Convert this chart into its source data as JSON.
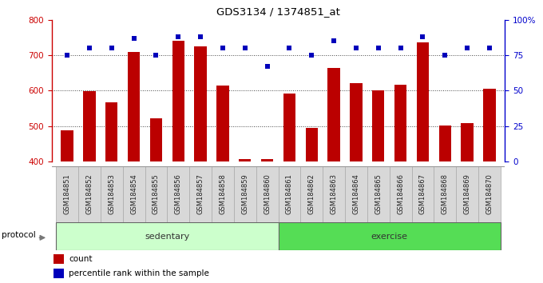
{
  "title": "GDS3134 / 1374851_at",
  "samples": [
    "GSM184851",
    "GSM184852",
    "GSM184853",
    "GSM184854",
    "GSM184855",
    "GSM184856",
    "GSM184857",
    "GSM184858",
    "GSM184859",
    "GSM184860",
    "GSM184861",
    "GSM184862",
    "GSM184863",
    "GSM184864",
    "GSM184865",
    "GSM184866",
    "GSM184867",
    "GSM184868",
    "GSM184869",
    "GSM184870"
  ],
  "counts": [
    487,
    598,
    567,
    710,
    521,
    741,
    724,
    614,
    406,
    406,
    592,
    494,
    663,
    622,
    600,
    617,
    737,
    502,
    508,
    606
  ],
  "percentiles": [
    75,
    80,
    80,
    87,
    75,
    88,
    88,
    80,
    80,
    67,
    80,
    75,
    85,
    80,
    80,
    80,
    88,
    75,
    80,
    80
  ],
  "sedentary_count": 10,
  "exercise_count": 10,
  "bar_color": "#bb0000",
  "dot_color": "#0000bb",
  "ylim_left": [
    400,
    800
  ],
  "ylim_right": [
    0,
    100
  ],
  "yticks_left": [
    400,
    500,
    600,
    700,
    800
  ],
  "yticks_right": [
    0,
    25,
    50,
    75,
    100
  ],
  "ytick_labels_right": [
    "0",
    "25",
    "50",
    "75",
    "100%"
  ],
  "grid_ticks": [
    500,
    600,
    700
  ],
  "sedentary_color": "#ccffcc",
  "exercise_color": "#55dd55",
  "protocol_label": "protocol",
  "legend_count_label": "count",
  "legend_pct_label": "percentile rank within the sample",
  "axis_color_left": "#cc0000",
  "axis_color_right": "#0000cc",
  "background_color": "#ffffff",
  "bar_width": 0.55,
  "tick_label_bg": "#d8d8d8"
}
